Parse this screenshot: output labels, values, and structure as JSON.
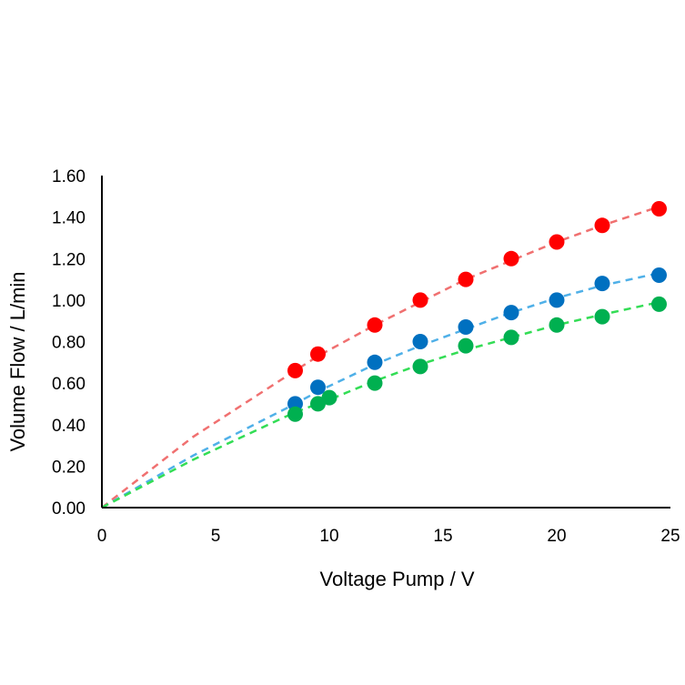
{
  "chart_data": {
    "type": "scatter",
    "title": "",
    "xlabel": "Voltage Pump / V",
    "ylabel": "Volume Flow / L/min",
    "xlim": [
      0,
      25
    ],
    "ylim": [
      0,
      1.6
    ],
    "xticks": [
      0,
      5,
      10,
      15,
      20,
      25
    ],
    "xtick_labels": [
      "0",
      "5",
      "10",
      "15",
      "20",
      "25"
    ],
    "yticks": [
      0,
      0.2,
      0.4,
      0.6,
      0.8,
      1.0,
      1.2,
      1.4,
      1.6
    ],
    "ytick_labels": [
      "0.00",
      "0.20",
      "0.40",
      "0.60",
      "0.80",
      "1.00",
      "1.20",
      "1.40",
      "1.60"
    ],
    "grid": false,
    "legend": "none",
    "series": [
      {
        "name": "red",
        "color": "#ff0000",
        "trend_color": "#f07070",
        "x": [
          8.5,
          9.5,
          12,
          14,
          16,
          18,
          20,
          22,
          24.5
        ],
        "y": [
          0.66,
          0.74,
          0.88,
          1.0,
          1.1,
          1.2,
          1.28,
          1.36,
          1.44
        ],
        "trend_x": [
          0,
          4,
          8.5,
          9.5,
          12,
          14,
          16,
          18,
          20,
          22,
          24.5
        ],
        "trend_y": [
          0,
          0.34,
          0.66,
          0.73,
          0.88,
          0.99,
          1.1,
          1.19,
          1.28,
          1.36,
          1.45
        ]
      },
      {
        "name": "blue",
        "color": "#0070c0",
        "trend_color": "#4fb0e8",
        "x": [
          8.5,
          9.5,
          12,
          14,
          16,
          18,
          20,
          22,
          24.5
        ],
        "y": [
          0.5,
          0.58,
          0.7,
          0.8,
          0.87,
          0.94,
          1.0,
          1.08,
          1.12
        ],
        "trend_x": [
          0,
          4,
          8.5,
          9.5,
          12,
          14,
          16,
          18,
          20,
          22,
          24.5
        ],
        "trend_y": [
          0,
          0.25,
          0.5,
          0.56,
          0.69,
          0.78,
          0.86,
          0.94,
          1.01,
          1.07,
          1.13
        ]
      },
      {
        "name": "green",
        "color": "#00b050",
        "trend_color": "#33dd55",
        "x": [
          8.5,
          9.5,
          10,
          12,
          14,
          16,
          18,
          20,
          22,
          24.5
        ],
        "y": [
          0.45,
          0.5,
          0.53,
          0.6,
          0.68,
          0.78,
          0.82,
          0.88,
          0.92,
          0.98
        ],
        "trend_x": [
          0,
          4,
          8.5,
          9.5,
          10,
          12,
          14,
          16,
          18,
          20,
          22,
          24.5
        ],
        "trend_y": [
          0,
          0.23,
          0.46,
          0.5,
          0.52,
          0.61,
          0.69,
          0.76,
          0.82,
          0.88,
          0.93,
          0.99
        ]
      }
    ]
  }
}
